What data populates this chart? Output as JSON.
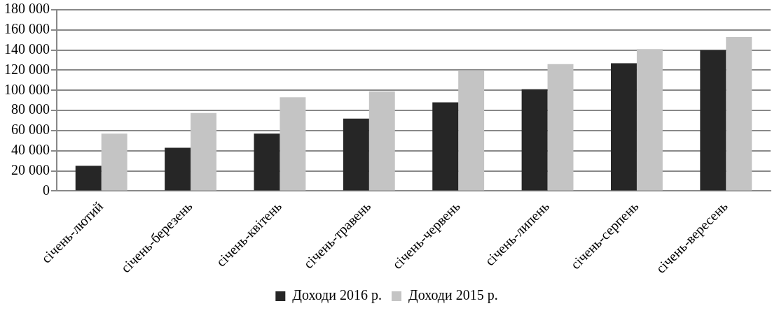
{
  "chart_data": {
    "type": "bar",
    "categories": [
      "січень-лютий",
      "січень-березень",
      "січень-квітень",
      "січень-травень",
      "січень-червень",
      "січень-липень",
      "січень-серпень",
      "січень-вересень"
    ],
    "series": [
      {
        "name": "Доходи 2016 р.",
        "color": "#262626",
        "values": [
          25000,
          43000,
          57000,
          72000,
          88000,
          101000,
          127000,
          140000
        ]
      },
      {
        "name": "Доходи 2015 р.",
        "color": "#c4c4c4",
        "values": [
          57000,
          77500,
          93000,
          99000,
          120000,
          126000,
          141000,
          153000
        ]
      }
    ],
    "ylim": [
      0,
      180000
    ],
    "yticks": [
      {
        "value": 0,
        "label": "0"
      },
      {
        "value": 20000,
        "label": "20 000"
      },
      {
        "value": 40000,
        "label": "40 000"
      },
      {
        "value": 60000,
        "label": "60 000"
      },
      {
        "value": 80000,
        "label": "80 000"
      },
      {
        "value": 100000,
        "label": "100 000"
      },
      {
        "value": 120000,
        "label": "120 000"
      },
      {
        "value": 140000,
        "label": "140 000"
      },
      {
        "value": 160000,
        "label": "160 000"
      },
      {
        "value": 180000,
        "label": "180 000"
      }
    ],
    "grid": "y",
    "legend": "bottom"
  }
}
